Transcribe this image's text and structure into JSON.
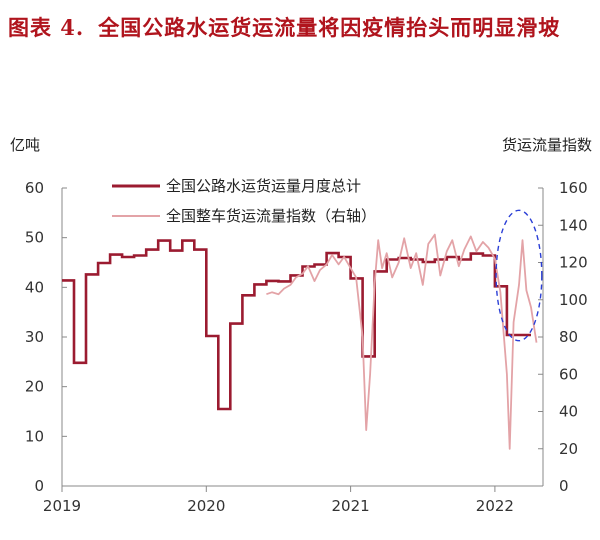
{
  "title": {
    "prefix": "图表 4.",
    "text": "全国公路水运货运流量将因疫情抬头而明显滑坡"
  },
  "left_axis_unit": "亿吨",
  "right_axis_unit": "货运流量指数",
  "colors": {
    "title": "#b0141d",
    "monthly_total": "#9b1b30",
    "truck_index": "#e3a3a7",
    "highlight_ellipse": "#2b3fd6"
  },
  "chart_data": {
    "type": "line",
    "x_tick_labels": [
      "2019",
      "2020",
      "2021",
      "2022"
    ],
    "xlim": [
      "2019-01-01",
      "2022-05-01"
    ],
    "y_left": {
      "ticks": [
        0,
        10,
        20,
        30,
        40,
        50,
        60
      ],
      "ylim": [
        0,
        60
      ]
    },
    "y_right": {
      "ticks": [
        0,
        20,
        40,
        60,
        80,
        100,
        120,
        140,
        160
      ],
      "ylim": [
        0,
        160
      ]
    },
    "grid": false,
    "legend_position": "top-center",
    "series": [
      {
        "name": "全国公路水运货运量月度总计",
        "axis": "left",
        "style": "step",
        "points": [
          [
            "2019-01",
            41.4
          ],
          [
            "2019-02",
            24.8
          ],
          [
            "2019-03",
            42.6
          ],
          [
            "2019-04",
            44.9
          ],
          [
            "2019-05",
            46.6
          ],
          [
            "2019-06",
            46.1
          ],
          [
            "2019-07",
            46.4
          ],
          [
            "2019-08",
            47.6
          ],
          [
            "2019-09",
            49.4
          ],
          [
            "2019-10",
            47.4
          ],
          [
            "2019-11",
            49.4
          ],
          [
            "2019-12",
            47.6
          ],
          [
            "2020-01",
            30.2
          ],
          [
            "2020-02",
            15.5
          ],
          [
            "2020-03",
            32.7
          ],
          [
            "2020-04",
            38.4
          ],
          [
            "2020-05",
            40.6
          ],
          [
            "2020-06",
            41.3
          ],
          [
            "2020-07",
            41.2
          ],
          [
            "2020-08",
            42.4
          ],
          [
            "2020-09",
            44.2
          ],
          [
            "2020-10",
            44.6
          ],
          [
            "2020-11",
            46.9
          ],
          [
            "2020-12",
            46.1
          ],
          [
            "2021-01",
            41.8
          ],
          [
            "2021-02",
            26.1
          ],
          [
            "2021-03",
            43.2
          ],
          [
            "2021-04",
            45.6
          ],
          [
            "2021-05",
            45.9
          ],
          [
            "2021-06",
            45.6
          ],
          [
            "2021-07",
            45.1
          ],
          [
            "2021-08",
            45.6
          ],
          [
            "2021-09",
            46.1
          ],
          [
            "2021-10",
            45.6
          ],
          [
            "2021-11",
            46.8
          ],
          [
            "2021-12",
            46.4
          ],
          [
            "2022-01",
            40.2
          ],
          [
            "2022-02",
            30.4
          ],
          [
            "2022-03",
            30.4
          ]
        ]
      },
      {
        "name": "全国整车货运流量指数（右轴）",
        "axis": "right",
        "style": "line",
        "points": [
          [
            "2020-06-01",
            103
          ],
          [
            "2020-06-15",
            104
          ],
          [
            "2020-07-01",
            103
          ],
          [
            "2020-07-15",
            106
          ],
          [
            "2020-08-01",
            108
          ],
          [
            "2020-08-15",
            112
          ],
          [
            "2020-09-01",
            114
          ],
          [
            "2020-09-15",
            118
          ],
          [
            "2020-10-01",
            110
          ],
          [
            "2020-10-15",
            116
          ],
          [
            "2020-11-01",
            119
          ],
          [
            "2020-11-15",
            124
          ],
          [
            "2020-12-01",
            119
          ],
          [
            "2020-12-15",
            123
          ],
          [
            "2021-01-01",
            117
          ],
          [
            "2021-01-15",
            112
          ],
          [
            "2021-02-01",
            80
          ],
          [
            "2021-02-10",
            30
          ],
          [
            "2021-02-20",
            60
          ],
          [
            "2021-03-01",
            109
          ],
          [
            "2021-03-10",
            132
          ],
          [
            "2021-03-20",
            117
          ],
          [
            "2021-04-01",
            125
          ],
          [
            "2021-04-15",
            112
          ],
          [
            "2021-05-01",
            120
          ],
          [
            "2021-05-15",
            133
          ],
          [
            "2021-06-01",
            117
          ],
          [
            "2021-06-15",
            125
          ],
          [
            "2021-07-01",
            108
          ],
          [
            "2021-07-15",
            130
          ],
          [
            "2021-08-01",
            135
          ],
          [
            "2021-08-15",
            113
          ],
          [
            "2021-09-01",
            126
          ],
          [
            "2021-09-15",
            132
          ],
          [
            "2021-10-01",
            118
          ],
          [
            "2021-10-15",
            127
          ],
          [
            "2021-11-01",
            134
          ],
          [
            "2021-11-15",
            126
          ],
          [
            "2021-12-01",
            131
          ],
          [
            "2021-12-15",
            128
          ],
          [
            "2022-01-01",
            122
          ],
          [
            "2022-01-15",
            104
          ],
          [
            "2022-02-01",
            60
          ],
          [
            "2022-02-08",
            20
          ],
          [
            "2022-02-18",
            88
          ],
          [
            "2022-03-01",
            108
          ],
          [
            "2022-03-10",
            132
          ],
          [
            "2022-03-20",
            105
          ],
          [
            "2022-04-01",
            96
          ],
          [
            "2022-04-15",
            77
          ]
        ]
      }
    ],
    "annotations": [
      {
        "type": "ellipse",
        "style": "dashed",
        "center": [
          "2022-03-01",
          113
        ],
        "rx_months": 1.9,
        "ry": 35,
        "axis": "right"
      }
    ]
  }
}
